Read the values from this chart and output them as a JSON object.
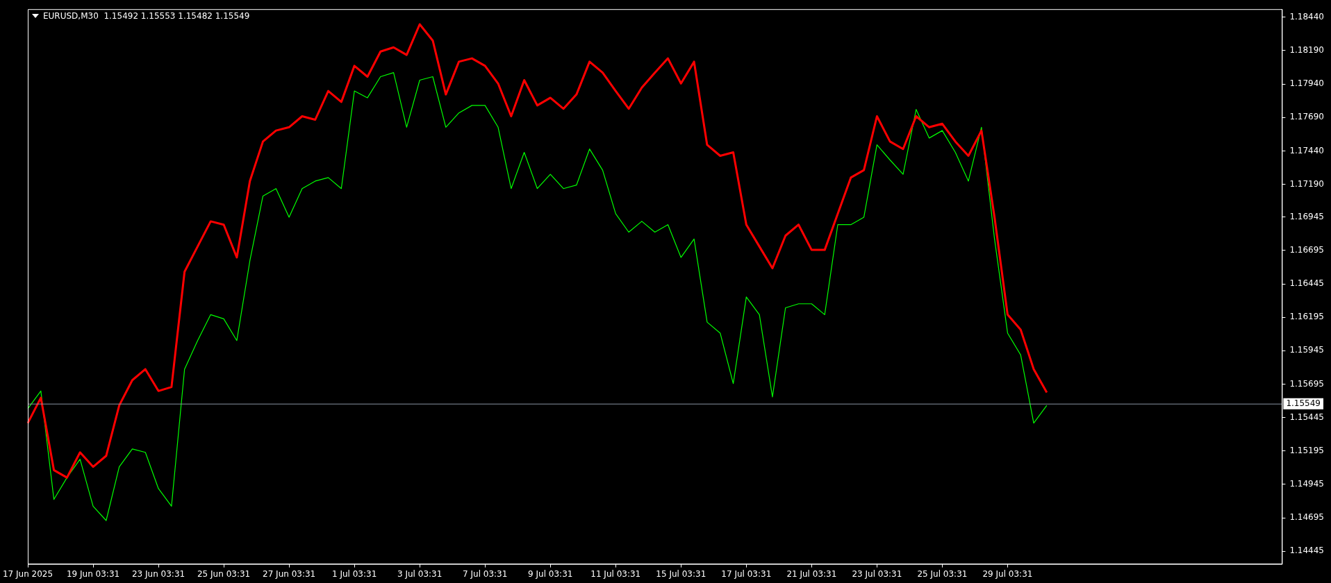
{
  "chart_data": {
    "type": "line",
    "title": "EURUSD,M30  1.15492 1.15553 1.15482 1.15549",
    "categories": [
      "17 Jun 2025",
      null,
      null,
      null,
      null,
      "19 Jun 03:31",
      null,
      null,
      null,
      null,
      "23 Jun 03:31",
      null,
      null,
      null,
      null,
      "25 Jun 03:31",
      null,
      null,
      null,
      null,
      "27 Jun 03:31",
      null,
      null,
      null,
      null,
      "1 Jul 03:31",
      null,
      null,
      null,
      null,
      "3 Jul 03:31",
      null,
      null,
      null,
      null,
      "7 Jul 03:31",
      null,
      null,
      null,
      null,
      "9 Jul 03:31",
      null,
      null,
      null,
      null,
      "11 Jul 03:31",
      null,
      null,
      null,
      null,
      "15 Jul 03:31",
      null,
      null,
      null,
      null,
      "17 Jul 03:31",
      null,
      null,
      null,
      null,
      "21 Jul 03:31",
      null,
      null,
      null,
      null,
      "23 Jul 03:31",
      null,
      null,
      null,
      null,
      "25 Jul 03:31",
      null,
      null,
      null,
      null,
      "29 Jul 03:31",
      null,
      null,
      null,
      null,
      null,
      null,
      null,
      null,
      null,
      null,
      null,
      null,
      null,
      null,
      null,
      null,
      null,
      null,
      null,
      null,
      null
    ],
    "series": [
      {
        "color": "#00ff00",
        "values": [
          1.15511,
          1.15644,
          1.14833,
          1.14996,
          1.15134,
          1.14782,
          1.14675,
          1.15077,
          1.1521,
          1.15185,
          1.14914,
          1.14782,
          1.15807,
          1.16021,
          1.16215,
          1.16184,
          1.16021,
          1.16618,
          1.17102,
          1.17158,
          1.16944,
          1.17158,
          1.17214,
          1.1724,
          1.17158,
          1.17888,
          1.17837,
          1.17995,
          1.18025,
          1.17617,
          1.17969,
          1.17995,
          1.17617,
          1.17724,
          1.1778,
          1.1778,
          1.17617,
          1.17158,
          1.17429,
          1.17158,
          1.17265,
          1.17158,
          1.17184,
          1.17454,
          1.17296,
          1.1697,
          1.16832,
          1.16913,
          1.16832,
          1.16888,
          1.16643,
          1.16781,
          1.16159,
          1.16077,
          1.157,
          1.16347,
          1.16215,
          1.156,
          1.16266,
          1.16296,
          1.16296,
          1.16215,
          1.16888,
          1.16888,
          1.16944,
          1.17485,
          1.17372,
          1.17265,
          1.1775,
          1.17536,
          1.17592,
          1.17429,
          1.17214,
          1.17617,
          1.16781,
          1.16077,
          1.15914,
          1.15404,
          1.15536,
          null,
          null,
          null,
          null,
          null,
          null,
          null,
          null,
          null,
          null,
          null,
          null,
          null,
          null,
          null,
          null,
          null,
          null
        ]
      },
      {
        "color": "#ff0000",
        "values": [
          1.15404,
          1.15593,
          1.15052,
          1.14996,
          1.15185,
          1.15077,
          1.15159,
          1.15536,
          1.15725,
          1.15807,
          1.15644,
          1.15674,
          1.16536,
          1.16725,
          1.16913,
          1.16888,
          1.16643,
          1.17214,
          1.1751,
          1.17592,
          1.17617,
          1.17699,
          1.17673,
          1.17888,
          1.17806,
          1.18076,
          1.17995,
          1.18183,
          1.18214,
          1.18158,
          1.18387,
          1.18265,
          1.17862,
          1.18107,
          1.18132,
          1.18076,
          1.17944,
          1.17699,
          1.17969,
          1.1778,
          1.17837,
          1.17755,
          1.17862,
          1.18107,
          1.18025,
          1.17888,
          1.17755,
          1.17913,
          1.18025,
          1.18132,
          1.17944,
          1.18107,
          1.17485,
          1.17403,
          1.17429,
          1.16888,
          1.16725,
          1.16562,
          1.16806,
          1.16888,
          1.16699,
          1.16699,
          1.1697,
          1.1724,
          1.17296,
          1.17699,
          1.1751,
          1.17454,
          1.17699,
          1.17617,
          1.17643,
          1.1751,
          1.17403,
          1.17592,
          1.16944,
          1.16215,
          1.16103,
          1.15807,
          1.15633,
          null,
          null,
          null,
          null,
          null,
          null,
          null,
          null,
          null,
          null,
          null,
          null,
          null,
          null,
          null,
          null,
          null,
          null
        ]
      }
    ],
    "ylim": [
      1.1435,
      1.185
    ],
    "yticks": [
      1.14445,
      1.14695,
      1.14945,
      1.15195,
      1.15445,
      1.15695,
      1.15945,
      1.16195,
      1.16445,
      1.16695,
      1.16945,
      {
        "value": 1.1719,
        "label": "1.17190"
      },
      {
        "value": 1.1744,
        "label": "1.17440"
      },
      {
        "value": 1.1769,
        "label": "1.17690"
      },
      {
        "value": 1.1794,
        "label": "1.17940"
      },
      {
        "value": 1.1819,
        "label": "1.18190"
      },
      {
        "value": 1.1844,
        "label": "1.18440"
      }
    ],
    "ref_lines": [
      {
        "axis": "y",
        "value": 1.15549,
        "label": "1.15549",
        "color": "#8a96a3"
      }
    ],
    "legend": false,
    "grid": false
  }
}
